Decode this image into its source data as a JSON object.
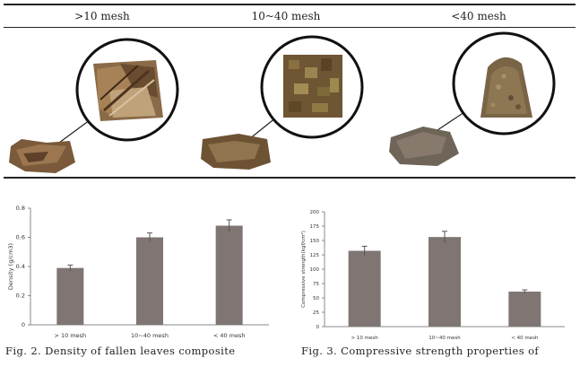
{
  "table": {
    "headers": [
      ">10 mesh",
      "10~40 mesh",
      "<40 mesh"
    ]
  },
  "chart_data": [
    {
      "type": "bar",
      "categories": [
        "> 10 mesh",
        "10~40 mesh",
        "< 40 mesh"
      ],
      "values": [
        0.39,
        0.6,
        0.68
      ],
      "errors": [
        0.02,
        0.03,
        0.04
      ],
      "ylabel": "Density (g/cm3)",
      "ylim": [
        0,
        0.8
      ],
      "yticks": [
        "0",
        "0.2",
        "0.4",
        "0.6",
        "0.8"
      ],
      "bar_color": "#7f7572"
    },
    {
      "type": "bar",
      "categories": [
        "> 10 mesh",
        "10~40 mesh",
        "< 40 mesh"
      ],
      "values": [
        132,
        156,
        61
      ],
      "errors": [
        8,
        10,
        3
      ],
      "ylabel": "Compressive strength(kgf/cm²)",
      "ylim": [
        0,
        200
      ],
      "yticks": [
        "0",
        "25",
        "50",
        "75",
        "100",
        "125",
        "150",
        "175",
        "200"
      ],
      "bar_color": "#7f7572"
    }
  ],
  "captions": {
    "fig2": "Fig. 2. Density of fallen leaves composite",
    "fig3": "Fig. 3. Compressive strength properties of"
  }
}
